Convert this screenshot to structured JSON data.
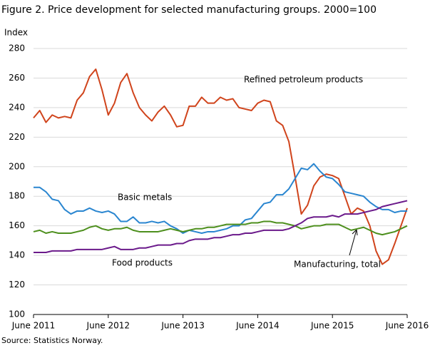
{
  "chart_data": {
    "type": "line",
    "title": "Figure 2. Price development for selected manufacturing groups. 2000=100",
    "y_label": "Index",
    "source": "Source: Statistics Norway.",
    "categories": [
      "June 2011",
      null,
      null,
      null,
      null,
      null,
      null,
      null,
      null,
      null,
      null,
      null,
      "June 2012",
      null,
      null,
      null,
      null,
      null,
      null,
      null,
      null,
      null,
      null,
      null,
      "June 2013",
      null,
      null,
      null,
      null,
      null,
      null,
      null,
      null,
      null,
      null,
      null,
      "June 2014",
      null,
      null,
      null,
      null,
      null,
      null,
      null,
      null,
      null,
      null,
      null,
      "June 2015",
      null,
      null,
      null,
      null,
      null,
      null,
      null,
      null,
      null,
      null,
      null,
      "June 2016"
    ],
    "ylim": [
      100,
      280
    ],
    "yticks": [
      100,
      120,
      140,
      160,
      180,
      200,
      220,
      240,
      260,
      280
    ],
    "grid": true,
    "series": [
      {
        "name": "Refined  petroleum  products",
        "color": "#d0441c",
        "values": [
          233,
          238,
          230,
          235,
          233,
          234,
          233,
          245,
          250,
          261,
          266,
          252,
          235,
          243,
          257,
          263,
          250,
          240,
          235,
          231,
          237,
          241,
          235,
          227,
          228,
          241,
          241,
          247,
          243,
          243,
          247,
          245,
          246,
          240,
          239,
          238,
          243,
          245,
          244,
          231,
          228,
          217,
          193,
          168,
          174,
          187,
          193,
          195,
          194,
          192,
          180,
          168,
          172,
          170,
          160,
          143,
          134,
          137,
          148,
          160,
          172
        ]
      },
      {
        "name": "Basic  metals",
        "color": "#2a86d0",
        "values": [
          186,
          186,
          183,
          178,
          177,
          171,
          168,
          170,
          170,
          172,
          170,
          169,
          170,
          168,
          163,
          163,
          166,
          162,
          162,
          163,
          162,
          163,
          160,
          158,
          155,
          157,
          156,
          155,
          156,
          156,
          157,
          158,
          160,
          160,
          164,
          165,
          170,
          175,
          176,
          181,
          181,
          185,
          192,
          199,
          198,
          202,
          197,
          193,
          192,
          188,
          183,
          182,
          181,
          180,
          176,
          173,
          171,
          171,
          169,
          170,
          170
        ]
      },
      {
        "name": "Manufacturing,  total",
        "color": "#4d8f1d",
        "values": [
          156,
          157,
          155,
          156,
          155,
          155,
          155,
          156,
          157,
          159,
          160,
          158,
          157,
          158,
          158,
          159,
          157,
          156,
          156,
          156,
          156,
          157,
          158,
          157,
          156,
          157,
          158,
          158,
          159,
          159,
          160,
          161,
          161,
          161,
          161,
          162,
          162,
          163,
          163,
          162,
          162,
          161,
          160,
          158,
          159,
          160,
          160,
          161,
          161,
          161,
          159,
          157,
          158,
          159,
          157,
          155,
          154,
          155,
          156,
          158,
          160
        ]
      },
      {
        "name": "Food products",
        "color": "#6b1a8b",
        "values": [
          142,
          142,
          142,
          143,
          143,
          143,
          143,
          144,
          144,
          144,
          144,
          144,
          145,
          146,
          144,
          144,
          144,
          145,
          145,
          146,
          147,
          147,
          147,
          148,
          148,
          150,
          151,
          151,
          151,
          152,
          152,
          153,
          154,
          154,
          155,
          155,
          156,
          157,
          157,
          157,
          157,
          158,
          160,
          162,
          165,
          166,
          166,
          166,
          167,
          166,
          168,
          168,
          168,
          169,
          170,
          171,
          173,
          174,
          175,
          176,
          177
        ]
      }
    ]
  }
}
